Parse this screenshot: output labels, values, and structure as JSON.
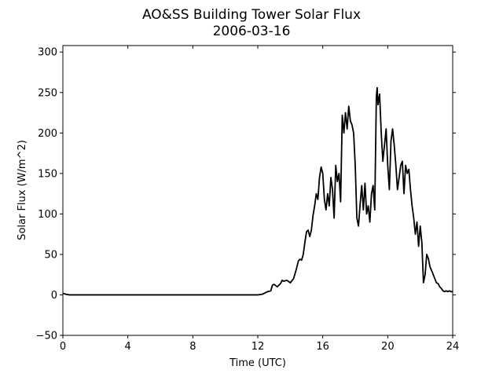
{
  "chart_data": {
    "type": "line",
    "title": "AO&SS Building Tower Solar Flux",
    "subtitle": "2006-03-16",
    "xlabel": "Time (UTC)",
    "ylabel": "Solar Flux (W/m^2)",
    "xlim": [
      0,
      24
    ],
    "ylim": [
      -50,
      308
    ],
    "xticks": [
      0,
      4,
      8,
      12,
      16,
      20,
      24
    ],
    "yticks": [
      -50,
      0,
      50,
      100,
      150,
      200,
      250,
      300
    ],
    "grid": false,
    "line_color": "#000000",
    "series": [
      {
        "x": [
          0,
          0.15,
          0.4,
          1,
          3,
          6,
          9,
          11,
          12.0,
          12.3,
          12.6,
          12.8,
          12.9,
          13.0,
          13.2,
          13.4,
          13.5,
          13.6,
          13.8,
          14.0,
          14.2,
          14.35,
          14.5,
          14.6,
          14.7,
          14.8,
          14.9,
          15.0,
          15.1,
          15.2,
          15.3,
          15.4,
          15.5,
          15.6,
          15.7,
          15.8,
          15.9,
          16.0,
          16.1,
          16.2,
          16.3,
          16.4,
          16.5,
          16.6,
          16.7,
          16.8,
          16.9,
          17.0,
          17.1,
          17.2,
          17.3,
          17.4,
          17.5,
          17.6,
          17.7,
          17.8,
          17.9,
          18.0,
          18.1,
          18.2,
          18.3,
          18.4,
          18.5,
          18.6,
          18.7,
          18.8,
          18.9,
          19.0,
          19.1,
          19.2,
          19.3,
          19.35,
          19.4,
          19.5,
          19.6,
          19.7,
          19.8,
          19.9,
          20.0,
          20.1,
          20.2,
          20.3,
          20.4,
          20.5,
          20.6,
          20.7,
          20.8,
          20.9,
          21.0,
          21.1,
          21.2,
          21.3,
          21.4,
          21.5,
          21.6,
          21.7,
          21.8,
          21.9,
          22.0,
          22.1,
          22.2,
          22.3,
          22.4,
          22.5,
          22.6,
          22.7,
          22.75,
          22.8,
          22.9,
          23.0,
          23.1,
          23.2,
          23.3,
          23.4,
          23.5,
          23.6,
          23.7,
          23.8,
          23.9,
          24.0
        ],
        "y": [
          2,
          1,
          0,
          0,
          0,
          0,
          0,
          0,
          0,
          1,
          4,
          5,
          12,
          13,
          10,
          14,
          18,
          17,
          18,
          15,
          20,
          30,
          42,
          44,
          43,
          50,
          65,
          78,
          80,
          72,
          80,
          98,
          110,
          125,
          118,
          145,
          158,
          150,
          118,
          105,
          125,
          110,
          145,
          130,
          95,
          160,
          140,
          150,
          115,
          222,
          200,
          225,
          205,
          233,
          215,
          210,
          200,
          160,
          95,
          85,
          112,
          135,
          105,
          138,
          100,
          110,
          90,
          125,
          135,
          105,
          245,
          256,
          235,
          248,
          200,
          165,
          185,
          205,
          160,
          130,
          190,
          205,
          185,
          160,
          130,
          145,
          160,
          165,
          125,
          160,
          150,
          155,
          130,
          110,
          95,
          75,
          90,
          60,
          85,
          65,
          15,
          25,
          50,
          45,
          35,
          30,
          28,
          25,
          20,
          15,
          14,
          10,
          8,
          5,
          4,
          5,
          4,
          5,
          4,
          4
        ]
      }
    ]
  }
}
